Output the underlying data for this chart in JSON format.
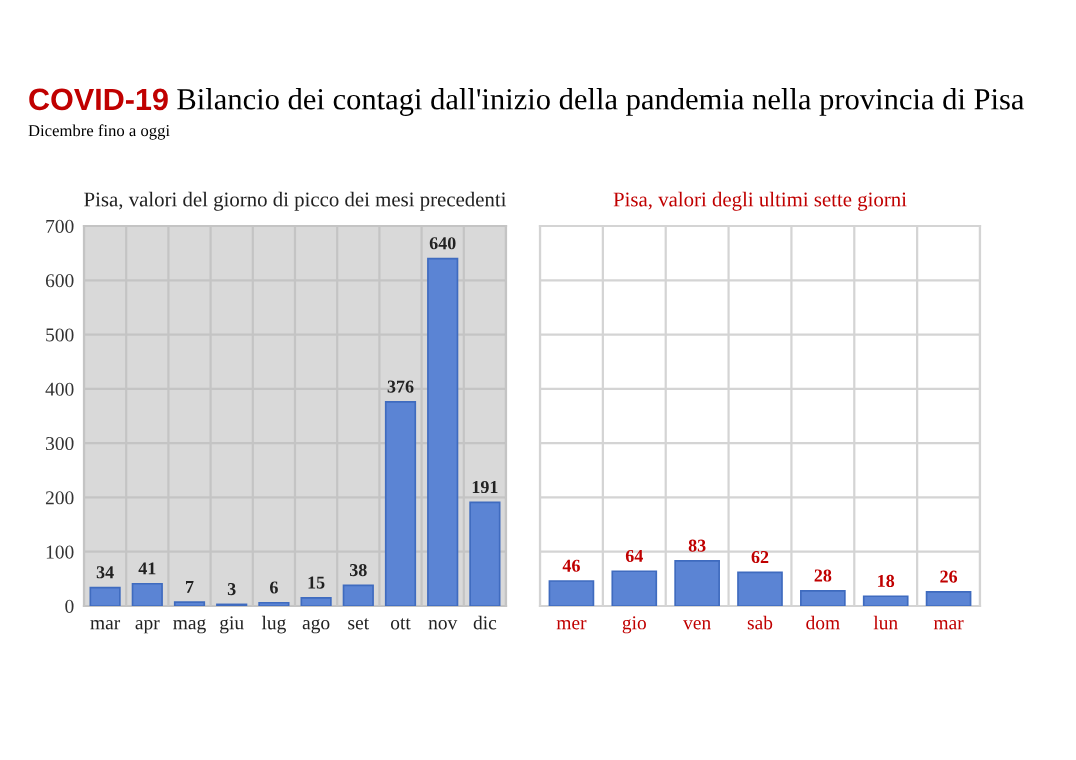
{
  "chart_data": [
    {
      "type": "bar",
      "title": "COVID-19 Bilancio dei contagi dall'inizio della pandemia nella provincia di Pisa",
      "subtitle": "Dicembre fino a oggi",
      "annotations": [
        "Pisa, valori del giorno di picco dei mesi precedenti"
      ],
      "categories": [
        "mar",
        "apr",
        "mag",
        "giu",
        "lug",
        "ago",
        "set",
        "ott",
        "nov",
        "dic"
      ],
      "values": [
        34,
        41,
        7,
        3,
        6,
        15,
        38,
        376,
        640,
        191
      ],
      "color": "#5b84d4",
      "ylim": [
        0,
        700
      ],
      "yticks": [
        0,
        100,
        200,
        300,
        400,
        500,
        600,
        700
      ],
      "grid": true,
      "data_labels": true
    },
    {
      "type": "bar",
      "annotations": [
        "Pisa, valori degli ultimi sette giorni"
      ],
      "categories": [
        "mer",
        "gio",
        "ven",
        "sab",
        "dom",
        "lun",
        "mar"
      ],
      "values": [
        46,
        64,
        83,
        62,
        28,
        18,
        26
      ],
      "color": "#5b84d4",
      "ylim": [
        0,
        700
      ],
      "yticks": [
        {
          "value": 0,
          "label": null
        },
        {
          "value": 100,
          "label": null
        },
        {
          "value": 200,
          "label": null
        },
        {
          "value": 300,
          "label": null
        },
        {
          "value": 400,
          "label": null
        },
        {
          "value": 500,
          "label": null
        },
        {
          "value": 600,
          "label": null
        },
        {
          "value": 700,
          "label": null
        }
      ],
      "tick_labels": "x",
      "grid": true,
      "data_labels": true
    }
  ]
}
